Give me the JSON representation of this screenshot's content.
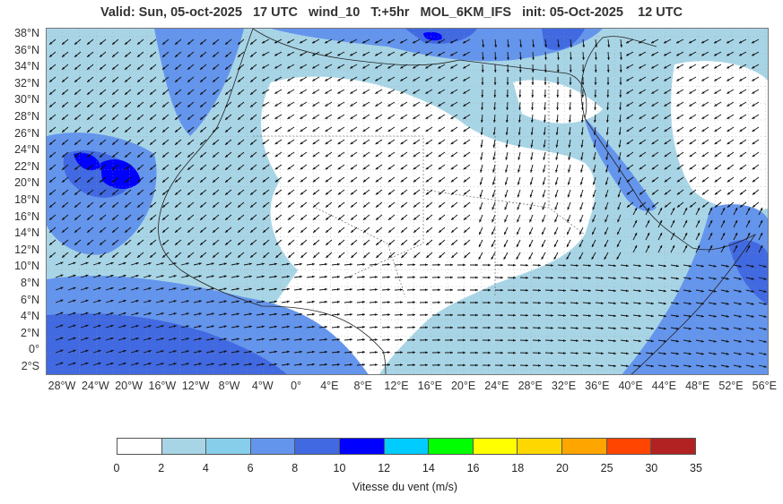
{
  "header": {
    "title": "Valid: Sun, 05-oct-2025   17 UTC   wind_10   T:+5hr   MOL_6KM_IFS   init: 05-Oct-2025    12 UTC"
  },
  "map": {
    "field": "wind_10",
    "model": "MOL_6KM_IFS",
    "extent": {
      "lon_min": -30,
      "lon_max": 57,
      "lat_min": -3.5,
      "lat_max": 38.5
    },
    "lat_labels": [
      "38°N",
      "36°N",
      "34°N",
      "32°N",
      "30°N",
      "28°N",
      "26°N",
      "24°N",
      "22°N",
      "20°N",
      "18°N",
      "16°N",
      "14°N",
      "12°N",
      "10°N",
      "8°N",
      "6°N",
      "4°N",
      "2°N",
      "0°",
      "2°S"
    ],
    "lon_labels": [
      "28°W",
      "24°W",
      "20°W",
      "16°W",
      "12°W",
      "8°W",
      "4°W",
      "0°",
      "4°E",
      "8°E",
      "12°E",
      "16°E",
      "20°E",
      "24°E",
      "28°E",
      "32°E",
      "36°E",
      "40°E",
      "44°E",
      "48°E",
      "52°E",
      "56°E"
    ]
  },
  "colorbar": {
    "label": "Vitesse du vent (m/s)",
    "ticks": [
      "0",
      "2",
      "4",
      "6",
      "8",
      "10",
      "12",
      "14",
      "16",
      "18",
      "20",
      "25",
      "30",
      "35"
    ],
    "colors": [
      "#ffffff",
      "#a8d5e6",
      "#87ceeb",
      "#6495ed",
      "#4169e1",
      "#0000ff",
      "#00ccff",
      "#00ff00",
      "#ffff00",
      "#ffd700",
      "#ffa500",
      "#ff4500",
      "#b22222"
    ]
  },
  "colors": {
    "frame": "#777777",
    "coast": "#222222",
    "border": "#555555",
    "arrow": "#111111"
  }
}
